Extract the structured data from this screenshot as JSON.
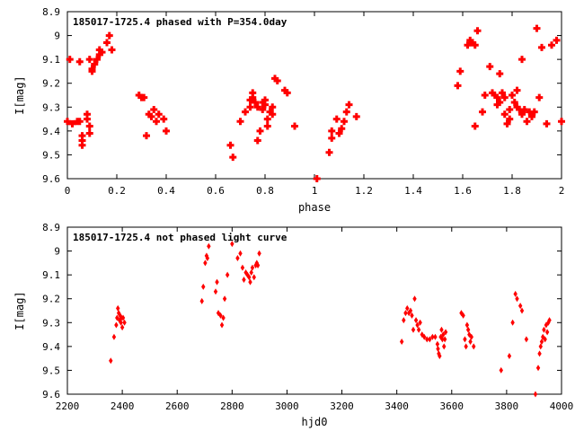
{
  "colors": {
    "points": "#ff0000",
    "axes": "#000000",
    "background": "#ffffff"
  },
  "chart_data": [
    {
      "type": "scatter",
      "title": "185017-1725.4 phased with P=354.0day",
      "xlabel": "phase",
      "ylabel": "I[mag]",
      "xlim": [
        0,
        2
      ],
      "ylim": [
        8.9,
        9.6
      ],
      "y_inverted": true,
      "xticks": [
        "0",
        "0.2",
        "0.4",
        "0.6",
        "0.8",
        "1",
        "1.2",
        "1.4",
        "1.6",
        "1.8",
        "2"
      ],
      "yticks": [
        "8.9",
        "9",
        "9.1",
        "9.2",
        "9.3",
        "9.4",
        "9.5",
        "9.6"
      ],
      "marker": "filled-cross",
      "points": [
        [
          0.0,
          9.36
        ],
        [
          0.01,
          9.1
        ],
        [
          0.02,
          9.37
        ],
        [
          0.04,
          9.36
        ],
        [
          0.05,
          9.11
        ],
        [
          0.05,
          9.36
        ],
        [
          0.06,
          9.42
        ],
        [
          0.06,
          9.44
        ],
        [
          0.06,
          9.46
        ],
        [
          0.08,
          9.33
        ],
        [
          0.08,
          9.35
        ],
        [
          0.09,
          9.1
        ],
        [
          0.09,
          9.38
        ],
        [
          0.09,
          9.41
        ],
        [
          0.1,
          9.14
        ],
        [
          0.1,
          9.15
        ],
        [
          0.11,
          9.12
        ],
        [
          0.12,
          9.1
        ],
        [
          0.13,
          9.08
        ],
        [
          0.13,
          9.06
        ],
        [
          0.14,
          9.07
        ],
        [
          0.16,
          9.03
        ],
        [
          0.17,
          9.0
        ],
        [
          0.18,
          9.06
        ],
        [
          0.29,
          9.25
        ],
        [
          0.3,
          9.26
        ],
        [
          0.31,
          9.26
        ],
        [
          0.32,
          9.42
        ],
        [
          0.33,
          9.33
        ],
        [
          0.34,
          9.34
        ],
        [
          0.35,
          9.31
        ],
        [
          0.36,
          9.36
        ],
        [
          0.37,
          9.33
        ],
        [
          0.39,
          9.35
        ],
        [
          0.4,
          9.4
        ],
        [
          0.66,
          9.46
        ],
        [
          0.67,
          9.51
        ],
        [
          0.7,
          9.36
        ],
        [
          0.72,
          9.32
        ],
        [
          0.74,
          9.3
        ],
        [
          0.74,
          9.27
        ],
        [
          0.75,
          9.24
        ],
        [
          0.75,
          9.26
        ],
        [
          0.76,
          9.28
        ],
        [
          0.77,
          9.44
        ],
        [
          0.77,
          9.3
        ],
        [
          0.78,
          9.4
        ],
        [
          0.79,
          9.31
        ],
        [
          0.79,
          9.28
        ],
        [
          0.8,
          9.29
        ],
        [
          0.8,
          9.27
        ],
        [
          0.81,
          9.38
        ],
        [
          0.81,
          9.35
        ],
        [
          0.82,
          9.32
        ],
        [
          0.83,
          9.3
        ],
        [
          0.83,
          9.33
        ],
        [
          0.84,
          9.18
        ],
        [
          0.85,
          9.19
        ],
        [
          0.88,
          9.23
        ],
        [
          0.89,
          9.24
        ],
        [
          0.92,
          9.38
        ],
        [
          1.01,
          9.6
        ],
        [
          1.06,
          9.49
        ],
        [
          1.07,
          9.43
        ],
        [
          1.07,
          9.4
        ],
        [
          1.09,
          9.35
        ],
        [
          1.1,
          9.41
        ],
        [
          1.11,
          9.39
        ],
        [
          1.12,
          9.36
        ],
        [
          1.13,
          9.32
        ],
        [
          1.14,
          9.29
        ],
        [
          1.17,
          9.34
        ],
        [
          1.58,
          9.21
        ],
        [
          1.59,
          9.15
        ],
        [
          1.62,
          9.04
        ],
        [
          1.63,
          9.02
        ],
        [
          1.64,
          9.03
        ],
        [
          1.65,
          9.04
        ],
        [
          1.65,
          9.38
        ],
        [
          1.66,
          8.98
        ],
        [
          1.68,
          9.32
        ],
        [
          1.69,
          9.25
        ],
        [
          1.71,
          9.13
        ],
        [
          1.72,
          9.24
        ],
        [
          1.73,
          9.25
        ],
        [
          1.74,
          9.26
        ],
        [
          1.74,
          9.29
        ],
        [
          1.75,
          9.16
        ],
        [
          1.75,
          9.28
        ],
        [
          1.76,
          9.24
        ],
        [
          1.77,
          9.33
        ],
        [
          1.77,
          9.26
        ],
        [
          1.78,
          9.37
        ],
        [
          1.79,
          9.31
        ],
        [
          1.79,
          9.35
        ],
        [
          1.8,
          9.25
        ],
        [
          1.81,
          9.28
        ],
        [
          1.82,
          9.3
        ],
        [
          1.82,
          9.23
        ],
        [
          1.83,
          9.31
        ],
        [
          1.84,
          9.1
        ],
        [
          1.84,
          9.33
        ],
        [
          1.85,
          9.31
        ],
        [
          1.86,
          9.36
        ],
        [
          1.87,
          9.32
        ],
        [
          1.88,
          9.34
        ],
        [
          1.89,
          9.32
        ],
        [
          1.9,
          8.97
        ],
        [
          1.91,
          9.26
        ],
        [
          1.92,
          9.05
        ],
        [
          1.94,
          9.37
        ],
        [
          1.96,
          9.04
        ],
        [
          1.98,
          9.02
        ],
        [
          2.0,
          9.36
        ]
      ]
    },
    {
      "type": "scatter",
      "title": "185017-1725.4 not phased light curve",
      "xlabel": "hjd0",
      "ylabel": "I[mag]",
      "xlim": [
        2200,
        4000
      ],
      "ylim": [
        8.9,
        9.6
      ],
      "y_inverted": true,
      "xticks": [
        "2200",
        "2400",
        "2600",
        "2800",
        "3000",
        "3200",
        "3400",
        "3600",
        "3800",
        "4000"
      ],
      "yticks": [
        "8.9",
        "9",
        "9.1",
        "9.2",
        "9.3",
        "9.4",
        "9.5",
        "9.6"
      ],
      "marker": "diamond",
      "points": [
        [
          2358,
          9.46
        ],
        [
          2370,
          9.36
        ],
        [
          2378,
          9.31
        ],
        [
          2381,
          9.28
        ],
        [
          2384,
          9.24
        ],
        [
          2387,
          9.26
        ],
        [
          2390,
          9.29
        ],
        [
          2392,
          9.27
        ],
        [
          2395,
          9.3
        ],
        [
          2397,
          9.28
        ],
        [
          2400,
          9.32
        ],
        [
          2403,
          9.28
        ],
        [
          2408,
          9.3
        ],
        [
          2690,
          9.21
        ],
        [
          2695,
          9.15
        ],
        [
          2702,
          9.05
        ],
        [
          2707,
          9.02
        ],
        [
          2710,
          9.03
        ],
        [
          2715,
          8.98
        ],
        [
          2740,
          9.17
        ],
        [
          2745,
          9.13
        ],
        [
          2750,
          9.26
        ],
        [
          2758,
          9.27
        ],
        [
          2763,
          9.31
        ],
        [
          2768,
          9.28
        ],
        [
          2773,
          9.2
        ],
        [
          2783,
          9.1
        ],
        [
          2800,
          8.97
        ],
        [
          2820,
          9.03
        ],
        [
          2830,
          9.01
        ],
        [
          2838,
          9.07
        ],
        [
          2843,
          9.12
        ],
        [
          2850,
          9.09
        ],
        [
          2856,
          9.1
        ],
        [
          2862,
          9.11
        ],
        [
          2866,
          9.13
        ],
        [
          2870,
          9.09
        ],
        [
          2874,
          9.07
        ],
        [
          2880,
          9.11
        ],
        [
          2886,
          9.06
        ],
        [
          2890,
          9.05
        ],
        [
          2894,
          9.06
        ],
        [
          2899,
          9.01
        ],
        [
          3418,
          9.38
        ],
        [
          3425,
          9.29
        ],
        [
          3432,
          9.26
        ],
        [
          3438,
          9.24
        ],
        [
          3444,
          9.26
        ],
        [
          3450,
          9.25
        ],
        [
          3455,
          9.27
        ],
        [
          3460,
          9.33
        ],
        [
          3465,
          9.2
        ],
        [
          3470,
          9.29
        ],
        [
          3475,
          9.31
        ],
        [
          3480,
          9.33
        ],
        [
          3485,
          9.3
        ],
        [
          3492,
          9.35
        ],
        [
          3500,
          9.36
        ],
        [
          3510,
          9.37
        ],
        [
          3520,
          9.37
        ],
        [
          3530,
          9.36
        ],
        [
          3540,
          9.36
        ],
        [
          3548,
          9.39
        ],
        [
          3550,
          9.41
        ],
        [
          3553,
          9.43
        ],
        [
          3556,
          9.44
        ],
        [
          3560,
          9.36
        ],
        [
          3563,
          9.33
        ],
        [
          3566,
          9.37
        ],
        [
          3569,
          9.35
        ],
        [
          3572,
          9.4
        ],
        [
          3575,
          9.37
        ],
        [
          3578,
          9.34
        ],
        [
          3635,
          9.26
        ],
        [
          3642,
          9.27
        ],
        [
          3648,
          9.37
        ],
        [
          3652,
          9.4
        ],
        [
          3656,
          9.31
        ],
        [
          3660,
          9.33
        ],
        [
          3664,
          9.35
        ],
        [
          3668,
          9.38
        ],
        [
          3672,
          9.36
        ],
        [
          3680,
          9.4
        ],
        [
          3780,
          9.5
        ],
        [
          3810,
          9.44
        ],
        [
          3822,
          9.3
        ],
        [
          3832,
          9.18
        ],
        [
          3838,
          9.2
        ],
        [
          3850,
          9.23
        ],
        [
          3856,
          9.25
        ],
        [
          3872,
          9.37
        ],
        [
          3905,
          9.6
        ],
        [
          3915,
          9.49
        ],
        [
          3920,
          9.43
        ],
        [
          3924,
          9.4
        ],
        [
          3928,
          9.38
        ],
        [
          3932,
          9.36
        ],
        [
          3936,
          9.33
        ],
        [
          3940,
          9.37
        ],
        [
          3944,
          9.31
        ],
        [
          3948,
          9.34
        ],
        [
          3952,
          9.3
        ],
        [
          3956,
          9.29
        ]
      ]
    }
  ]
}
